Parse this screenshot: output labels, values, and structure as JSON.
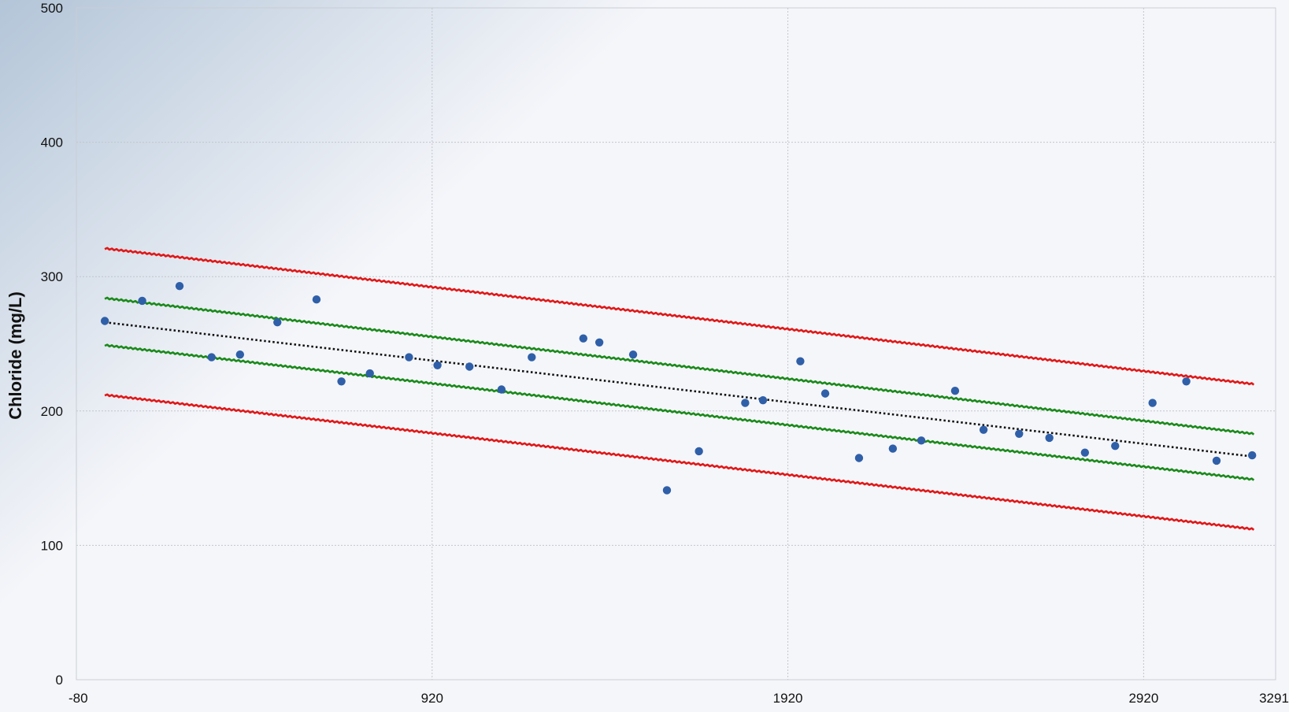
{
  "chart_data": {
    "type": "scatter",
    "title": "",
    "xlabel": "",
    "ylabel": "Chloride (mg/L)",
    "xlim": [
      -80,
      3291
    ],
    "ylim": [
      0,
      500
    ],
    "x_ticks": [
      {
        "value": -80,
        "label": "-80"
      },
      {
        "value": 920,
        "label": "920"
      },
      {
        "value": 1920,
        "label": "1920"
      },
      {
        "value": 2920,
        "label": "2920"
      },
      {
        "value": 3291,
        "label": "3291"
      }
    ],
    "y_ticks": [
      {
        "value": 0,
        "label": "0"
      },
      {
        "value": 100,
        "label": "100"
      },
      {
        "value": 200,
        "label": "200"
      },
      {
        "value": 300,
        "label": "300"
      },
      {
        "value": 400,
        "label": "400"
      },
      {
        "value": 500,
        "label": "500"
      }
    ],
    "grid": true,
    "legend": "none",
    "colors": {
      "points": "#2f5fa8",
      "trend": "#111111",
      "inner_band": "#1a8a1a",
      "outer_band": "#e01818"
    },
    "points": [
      {
        "x": 0,
        "y": 267
      },
      {
        "x": 105,
        "y": 282
      },
      {
        "x": 210,
        "y": 293
      },
      {
        "x": 300,
        "y": 240
      },
      {
        "x": 380,
        "y": 242
      },
      {
        "x": 485,
        "y": 266
      },
      {
        "x": 595,
        "y": 283
      },
      {
        "x": 665,
        "y": 222
      },
      {
        "x": 745,
        "y": 228
      },
      {
        "x": 855,
        "y": 240
      },
      {
        "x": 935,
        "y": 234
      },
      {
        "x": 1025,
        "y": 233
      },
      {
        "x": 1115,
        "y": 216
      },
      {
        "x": 1200,
        "y": 240
      },
      {
        "x": 1345,
        "y": 254
      },
      {
        "x": 1390,
        "y": 251
      },
      {
        "x": 1485,
        "y": 242
      },
      {
        "x": 1580,
        "y": 141
      },
      {
        "x": 1670,
        "y": 170
      },
      {
        "x": 1800,
        "y": 206
      },
      {
        "x": 1850,
        "y": 208
      },
      {
        "x": 1955,
        "y": 237
      },
      {
        "x": 2025,
        "y": 213
      },
      {
        "x": 2120,
        "y": 165
      },
      {
        "x": 2215,
        "y": 172
      },
      {
        "x": 2295,
        "y": 178
      },
      {
        "x": 2390,
        "y": 215
      },
      {
        "x": 2470,
        "y": 186
      },
      {
        "x": 2570,
        "y": 183
      },
      {
        "x": 2655,
        "y": 180
      },
      {
        "x": 2755,
        "y": 169
      },
      {
        "x": 2840,
        "y": 174
      },
      {
        "x": 2945,
        "y": 206
      },
      {
        "x": 3040,
        "y": 222
      },
      {
        "x": 3125,
        "y": 163
      },
      {
        "x": 3225,
        "y": 167
      }
    ],
    "lines": [
      {
        "role": "trend",
        "style": "dotted",
        "x": [
          0,
          3230
        ],
        "y": [
          266,
          166
        ]
      },
      {
        "role": "inner-band-upper",
        "style": "solid",
        "x": [
          0,
          3230
        ],
        "y": [
          284,
          183
        ]
      },
      {
        "role": "inner-band-lower",
        "style": "solid",
        "x": [
          0,
          3230
        ],
        "y": [
          249,
          149
        ]
      },
      {
        "role": "outer-band-upper",
        "style": "solid",
        "x": [
          0,
          3230
        ],
        "y": [
          321,
          220
        ]
      },
      {
        "role": "outer-band-lower",
        "style": "solid",
        "x": [
          0,
          3230
        ],
        "y": [
          212,
          112
        ]
      }
    ]
  }
}
